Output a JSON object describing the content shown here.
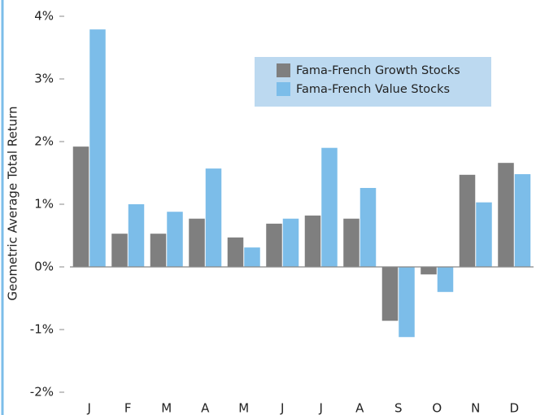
{
  "chart_data": {
    "type": "bar",
    "y_label": "Geometric Average Total Return",
    "categories": [
      "J",
      "F",
      "M",
      "A",
      "M",
      "J",
      "J",
      "A",
      "S",
      "O",
      "N",
      "D"
    ],
    "series": [
      {
        "name": "Fama-French Growth Stocks",
        "color": "#7f7f7f",
        "values": [
          1.92,
          0.53,
          0.53,
          0.77,
          0.47,
          0.69,
          0.82,
          0.77,
          -0.86,
          -0.12,
          1.47,
          1.66
        ]
      },
      {
        "name": "Fama-French Value Stocks",
        "color": "#7cbde9",
        "values": [
          3.79,
          1.0,
          0.88,
          1.57,
          0.31,
          0.77,
          1.9,
          1.26,
          -1.12,
          -0.4,
          1.03,
          1.48
        ]
      }
    ],
    "ylim": [
      -2,
      4
    ],
    "yticks": [
      {
        "value": -2,
        "label": "-2%"
      },
      {
        "value": -1,
        "label": "-1%"
      },
      {
        "value": 0,
        "label": "0%"
      },
      {
        "value": 1,
        "label": "1%"
      },
      {
        "value": 2,
        "label": "2%"
      },
      {
        "value": 3,
        "label": "3%"
      },
      {
        "value": 4,
        "label": "4%"
      }
    ],
    "legend": "upper right"
  }
}
